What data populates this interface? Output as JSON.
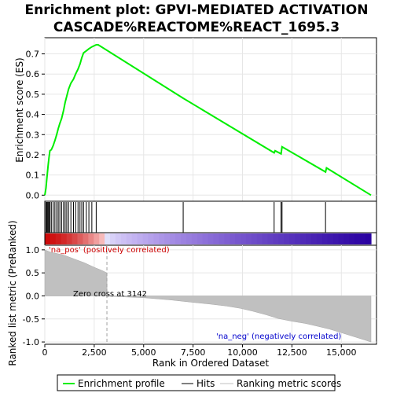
{
  "title_line1": "Enrichment plot: GPVI-MEDIATED ACTIVATION",
  "title_line2": "CASCADE%REACTOME%REACT_1695.3",
  "top_panel": {
    "ylabel": "Enrichment score (ES)",
    "yticks": [
      "0.0",
      "0.1",
      "0.2",
      "0.3",
      "0.4",
      "0.5",
      "0.6",
      "0.7"
    ]
  },
  "bottom_panel": {
    "ylabel": "Ranked list metric (PreRanked)",
    "xlabel": "Rank in Ordered Dataset",
    "yticks": [
      "1.0",
      "0.5",
      "0.0",
      "-0.5",
      "-1.0"
    ],
    "xticks": [
      "0",
      "2,500",
      "5,000",
      "7,500",
      "10,000",
      "12,500",
      "15,000"
    ],
    "pos_label": "'na_pos' (positively correlated)",
    "neg_label": "'na_neg' (negatively correlated)",
    "zero_cross_label": "Zero cross at 3142"
  },
  "legend": {
    "items": [
      "Enrichment profile",
      "Hits",
      "Ranking metric scores"
    ]
  },
  "colors": {
    "es_line": "#00ee00",
    "hits": "#000000",
    "metric_fill": "#c0c0c0",
    "pos_text": "#cc0000",
    "neg_text": "#0000cc"
  },
  "chart_data": {
    "type": "line",
    "n_genes": 16500,
    "zero_cross": 3142,
    "es_ylim": [
      -0.03,
      0.78
    ],
    "metric_ylim": [
      -1.05,
      1.1
    ],
    "es_profile": {
      "x": [
        0,
        60,
        90,
        130,
        170,
        210,
        260,
        330,
        420,
        510,
        600,
        680,
        760,
        850,
        950,
        1030,
        1110,
        1200,
        1320,
        1450,
        1560,
        1680,
        1780,
        1870,
        1960,
        2100,
        2230,
        2380,
        2600,
        2700,
        7000,
        11600,
        11650,
        11950,
        12000,
        14200,
        14250,
        16500
      ],
      "y": [
        0.0,
        0.035,
        0.07,
        0.11,
        0.15,
        0.185,
        0.22,
        0.225,
        0.245,
        0.27,
        0.3,
        0.33,
        0.355,
        0.38,
        0.42,
        0.46,
        0.49,
        0.525,
        0.555,
        0.575,
        0.6,
        0.625,
        0.65,
        0.68,
        0.705,
        0.715,
        0.725,
        0.735,
        0.745,
        0.745,
        0.48,
        0.21,
        0.22,
        0.205,
        0.24,
        0.115,
        0.135,
        0.0
      ]
    },
    "hits": [
      60,
      90,
      130,
      170,
      210,
      260,
      330,
      420,
      510,
      600,
      680,
      760,
      850,
      950,
      1030,
      1110,
      1200,
      1320,
      1450,
      1560,
      1680,
      1780,
      1870,
      1960,
      2100,
      2230,
      2380,
      2600,
      7000,
      11600,
      11950,
      12000,
      14200
    ],
    "metric": {
      "x": [
        0,
        100,
        300,
        600,
        1000,
        1500,
        2000,
        2500,
        2900,
        3142,
        3150,
        5000,
        6400,
        7500,
        8400,
        9200,
        9900,
        10500,
        11200,
        11800,
        12500,
        13200,
        13800,
        14400,
        15000,
        15600,
        16200,
        16500
      ],
      "y": [
        1.0,
        0.98,
        0.95,
        0.92,
        0.88,
        0.8,
        0.72,
        0.62,
        0.55,
        0.5,
        -0.005,
        -0.04,
        -0.09,
        -0.14,
        -0.18,
        -0.22,
        -0.27,
        -0.33,
        -0.41,
        -0.49,
        -0.55,
        -0.6,
        -0.66,
        -0.72,
        -0.8,
        -0.88,
        -0.96,
        -1.0
      ]
    }
  }
}
